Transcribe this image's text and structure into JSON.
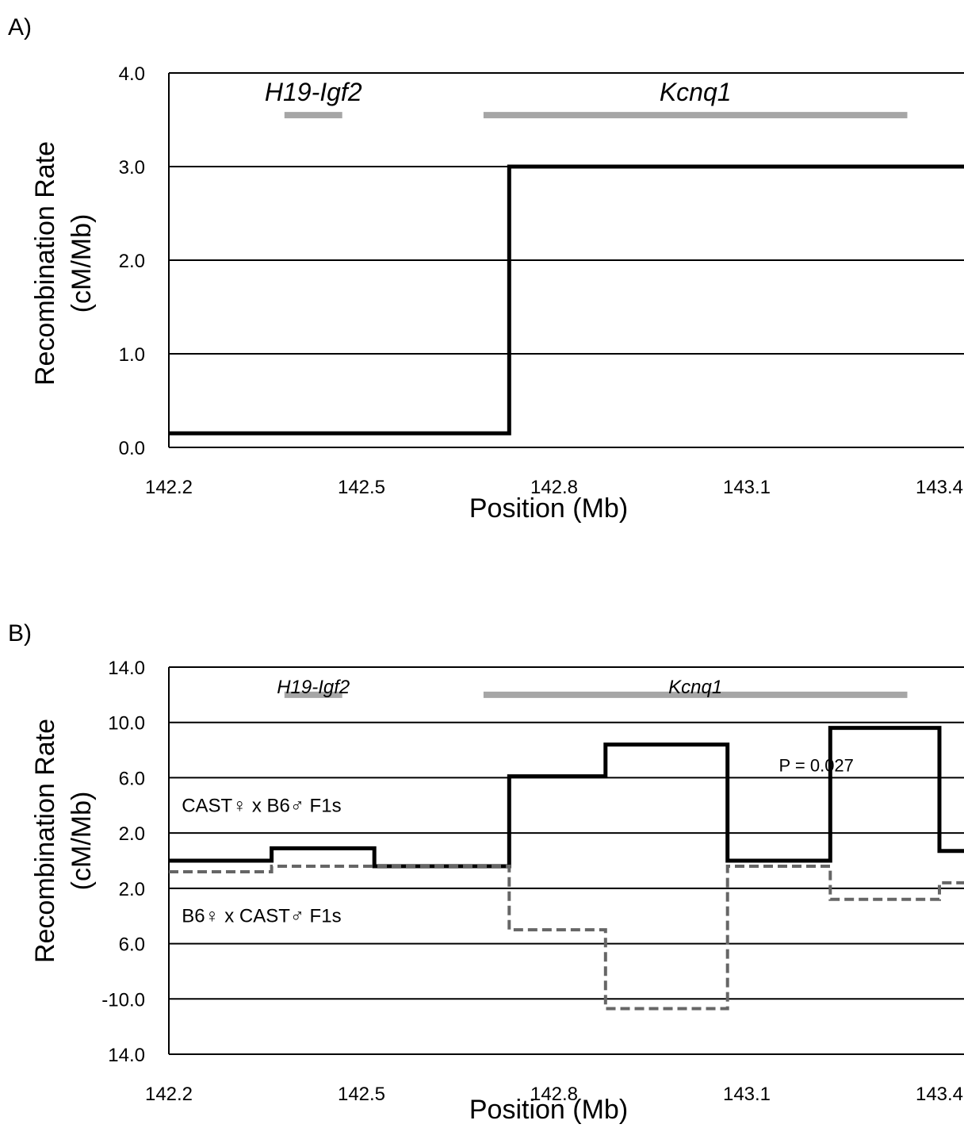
{
  "colors": {
    "series_solid": "#000000",
    "series_dashed": "#666666",
    "region_bar": "#a6a6a6",
    "gridline": "#000000"
  },
  "chart_data": [
    {
      "panel_label": "A)",
      "type": "line",
      "step": true,
      "xlabel": "Position (Mb)",
      "ylabel": [
        "Recombination Rate",
        "(cM/Mb)"
      ],
      "xlim": [
        142.2,
        143.4
      ],
      "ylim": [
        0,
        4
      ],
      "x_ticks": [
        "142.2",
        "142.5",
        "142.8",
        "143.1",
        "143.4"
      ],
      "y_ticks": [
        "0.0",
        "1.0",
        "2.0",
        "3.0",
        "4.0"
      ],
      "grid": true,
      "regions": [
        {
          "name": "H19-Igf2",
          "start": 142.38,
          "end": 142.47,
          "y": 3.55
        },
        {
          "name": "Kcnq1",
          "start": 142.69,
          "end": 143.35,
          "y": 3.55
        }
      ],
      "series": [
        {
          "style": "solid",
          "x": [
            142.2,
            142.73,
            142.73,
            143.48
          ],
          "y": [
            0.15,
            0.15,
            3.0,
            3.0
          ]
        }
      ]
    },
    {
      "panel_label": "B)",
      "type": "line",
      "step": true,
      "xlabel": "Position (Mb)",
      "ylabel": [
        "Recombination Rate",
        "(cM/Mb)"
      ],
      "xlim": [
        142.2,
        143.4
      ],
      "ylim": [
        -14,
        14
      ],
      "x_ticks": [
        "142.2",
        "142.5",
        "142.8",
        "143.1",
        "143.4"
      ],
      "y_tick_values": [
        14,
        10,
        6,
        2,
        -2,
        -6,
        -10,
        -14
      ],
      "y_ticks": [
        "14.0",
        "10.0",
        "6.0",
        "2.0",
        "2.0",
        "6.0",
        "-10.0",
        "14.0"
      ],
      "grid": true,
      "regions": [
        {
          "name": "H19-Igf2",
          "start": 142.38,
          "end": 142.47,
          "y": 12.0
        },
        {
          "name": "Kcnq1",
          "start": 142.69,
          "end": 143.35,
          "y": 12.0
        }
      ],
      "annotations": [
        {
          "text": "P = 0.027",
          "x": 143.15,
          "y": 6.9
        },
        {
          "text": "CAST♀ x B6♂ F1s",
          "x": 142.22,
          "y": 4.0
        },
        {
          "text": "B6♀ x CAST♂ F1s",
          "x": 142.22,
          "y": -4.0
        }
      ],
      "series": [
        {
          "style": "solid",
          "x": [
            142.2,
            142.36,
            142.36,
            142.52,
            142.52,
            142.73,
            142.73,
            142.88,
            142.88,
            143.07,
            143.07,
            143.23,
            143.23,
            143.4,
            143.4,
            143.48
          ],
          "y": [
            0.0,
            0.0,
            0.9,
            0.9,
            -0.4,
            -0.4,
            6.1,
            6.1,
            8.4,
            8.4,
            0.0,
            0.0,
            9.6,
            9.6,
            0.7,
            0.7
          ]
        },
        {
          "style": "dashed",
          "x": [
            142.2,
            142.36,
            142.36,
            142.73,
            142.73,
            142.88,
            142.88,
            143.07,
            143.07,
            143.23,
            143.23,
            143.4,
            143.4,
            143.48
          ],
          "y": [
            -0.8,
            -0.8,
            -0.4,
            -0.4,
            -5.0,
            -5.0,
            -10.7,
            -10.7,
            -0.4,
            -0.4,
            -2.8,
            -2.8,
            -1.6,
            -1.6
          ]
        }
      ]
    }
  ]
}
